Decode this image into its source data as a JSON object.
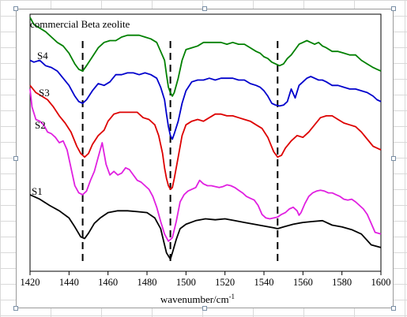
{
  "chart_data": {
    "type": "line",
    "title": "",
    "xlabel": "wavenumber/cm",
    "xlabel_superscript": "-1",
    "ylabel": "",
    "xlim": [
      1420,
      1600
    ],
    "ylim": [
      0,
      14
    ],
    "x_ticks": [
      "1420",
      "1440",
      "1460",
      "1480",
      "1500",
      "1520",
      "1540",
      "1560",
      "1580",
      "1600"
    ],
    "y_ticks_shown": false,
    "grid": false,
    "legend": "none (labels placed beside each curve)",
    "reference_lines": [
      1447,
      1492,
      1547
    ],
    "reference_line_style": "dashed",
    "series": [
      {
        "name": "S1",
        "color": "#000000",
        "x": [
          1420,
          1425,
          1430,
          1435,
          1440,
          1443,
          1446,
          1448,
          1450,
          1453,
          1456,
          1460,
          1465,
          1470,
          1475,
          1480,
          1484,
          1487,
          1489,
          1490,
          1492,
          1493,
          1495,
          1497,
          1500,
          1505,
          1510,
          1515,
          1520,
          1525,
          1530,
          1535,
          1540,
          1545,
          1547,
          1550,
          1555,
          1560,
          1565,
          1570,
          1575,
          1580,
          1585,
          1590,
          1595,
          1600
        ],
        "y": [
          4.1,
          3.85,
          3.5,
          3.2,
          2.8,
          2.3,
          1.75,
          1.65,
          1.95,
          2.5,
          2.8,
          3.1,
          3.2,
          3.2,
          3.15,
          3.1,
          2.8,
          2.2,
          1.3,
          0.85,
          0.5,
          0.85,
          1.6,
          2.2,
          2.45,
          2.65,
          2.75,
          2.7,
          2.75,
          2.65,
          2.55,
          2.45,
          2.35,
          2.25,
          2.2,
          2.3,
          2.45,
          2.55,
          2.6,
          2.65,
          2.4,
          2.3,
          2.15,
          1.9,
          1.3,
          1.15
        ]
      },
      {
        "name": "S2",
        "color": "#e020e0",
        "x": [
          1420,
          1421,
          1423,
          1425,
          1427,
          1429,
          1431,
          1433,
          1435,
          1437,
          1439,
          1441,
          1443,
          1445,
          1447,
          1449,
          1451,
          1453,
          1455,
          1457,
          1459,
          1461,
          1463,
          1465,
          1467,
          1469,
          1471,
          1473,
          1475,
          1477,
          1479,
          1481,
          1483,
          1485,
          1487,
          1489,
          1491,
          1493,
          1495,
          1497,
          1499,
          1501,
          1503,
          1505,
          1507,
          1509,
          1511,
          1513,
          1515,
          1517,
          1519,
          1521,
          1523,
          1525,
          1527,
          1529,
          1531,
          1533,
          1535,
          1537,
          1539,
          1541,
          1543,
          1545,
          1547,
          1549,
          1551,
          1553,
          1555,
          1557,
          1558,
          1559,
          1561,
          1563,
          1565,
          1567,
          1569,
          1571,
          1573,
          1575,
          1577,
          1579,
          1581,
          1583,
          1585,
          1587,
          1589,
          1591,
          1593,
          1595,
          1597,
          1600
        ],
        "y": [
          10.0,
          9.0,
          8.3,
          8.2,
          8.0,
          7.6,
          7.5,
          7.3,
          7.0,
          7.1,
          6.6,
          5.6,
          4.6,
          4.2,
          4.1,
          4.3,
          4.9,
          5.4,
          6.2,
          7.0,
          5.8,
          5.2,
          5.4,
          5.2,
          5.3,
          5.6,
          5.5,
          5.2,
          4.9,
          4.8,
          4.6,
          4.4,
          4.0,
          3.4,
          2.6,
          1.9,
          1.5,
          1.7,
          2.6,
          3.7,
          4.1,
          4.3,
          4.4,
          4.5,
          4.9,
          4.7,
          4.6,
          4.6,
          4.55,
          4.5,
          4.55,
          4.65,
          4.6,
          4.5,
          4.35,
          4.2,
          4.0,
          3.9,
          3.8,
          3.5,
          3.0,
          2.8,
          2.75,
          2.8,
          2.85,
          3.0,
          3.1,
          3.3,
          3.4,
          3.2,
          2.95,
          3.1,
          3.6,
          4.0,
          4.2,
          4.3,
          4.35,
          4.3,
          4.2,
          4.2,
          4.1,
          4.0,
          3.85,
          3.8,
          3.85,
          3.7,
          3.5,
          3.3,
          3.0,
          2.5,
          2.0,
          1.9
        ]
      },
      {
        "name": "S3",
        "color": "#dd0000",
        "x": [
          1420,
          1423,
          1426,
          1429,
          1432,
          1435,
          1438,
          1441,
          1444,
          1446,
          1448,
          1450,
          1452,
          1455,
          1458,
          1460,
          1463,
          1466,
          1469,
          1472,
          1475,
          1478,
          1481,
          1484,
          1486,
          1488,
          1489,
          1490,
          1491,
          1492,
          1493,
          1494,
          1496,
          1498,
          1500,
          1503,
          1506,
          1509,
          1512,
          1515,
          1518,
          1521,
          1524,
          1527,
          1530,
          1533,
          1536,
          1539,
          1542,
          1545,
          1547,
          1549,
          1551,
          1554,
          1557,
          1560,
          1563,
          1566,
          1569,
          1572,
          1575,
          1578,
          1581,
          1584,
          1587,
          1590,
          1593,
          1596,
          1598,
          1600
        ],
        "y": [
          10.2,
          9.8,
          9.6,
          9.4,
          9.0,
          8.5,
          8.1,
          7.6,
          6.8,
          6.4,
          6.2,
          6.4,
          6.9,
          7.4,
          7.7,
          8.2,
          8.6,
          8.7,
          8.7,
          8.7,
          8.7,
          8.4,
          8.3,
          8.0,
          7.4,
          6.4,
          5.6,
          5.0,
          4.6,
          4.4,
          4.5,
          5.0,
          6.2,
          7.4,
          8.0,
          8.2,
          8.3,
          8.2,
          8.4,
          8.6,
          8.6,
          8.5,
          8.5,
          8.4,
          8.3,
          8.2,
          8.0,
          7.8,
          7.3,
          6.5,
          6.2,
          6.3,
          6.7,
          7.1,
          7.4,
          7.3,
          7.6,
          8.0,
          8.4,
          8.5,
          8.5,
          8.3,
          8.1,
          8.0,
          7.9,
          7.6,
          7.2,
          6.8,
          6.7,
          6.6
        ]
      },
      {
        "name": "S4",
        "color": "#0000cc",
        "x": [
          1420,
          1422,
          1425,
          1428,
          1431,
          1434,
          1437,
          1440,
          1443,
          1445,
          1447,
          1449,
          1452,
          1455,
          1458,
          1461,
          1464,
          1467,
          1470,
          1473,
          1476,
          1479,
          1482,
          1485,
          1487,
          1489,
          1490,
          1491,
          1492,
          1493,
          1494,
          1496,
          1498,
          1500,
          1503,
          1506,
          1509,
          1512,
          1515,
          1518,
          1521,
          1524,
          1527,
          1530,
          1533,
          1536,
          1538,
          1540,
          1542,
          1544,
          1546,
          1548,
          1550,
          1552,
          1554,
          1556,
          1558,
          1560,
          1562,
          1564,
          1566,
          1568,
          1570,
          1572,
          1575,
          1578,
          1581,
          1584,
          1587,
          1590,
          1593,
          1596,
          1598,
          1600
        ],
        "y": [
          11.6,
          11.5,
          11.6,
          11.3,
          11.2,
          11.0,
          10.6,
          10.2,
          9.6,
          9.3,
          9.2,
          9.4,
          9.9,
          10.3,
          10.2,
          10.4,
          10.8,
          10.8,
          10.9,
          10.9,
          10.8,
          10.9,
          10.8,
          10.6,
          10.1,
          9.4,
          8.6,
          7.9,
          7.4,
          7.2,
          7.5,
          8.2,
          9.2,
          9.9,
          10.4,
          10.5,
          10.5,
          10.6,
          10.5,
          10.6,
          10.6,
          10.6,
          10.5,
          10.5,
          10.3,
          10.2,
          10.1,
          9.9,
          9.6,
          9.2,
          9.1,
          9.05,
          9.1,
          9.3,
          10.0,
          9.5,
          10.2,
          10.4,
          10.6,
          10.7,
          10.6,
          10.5,
          10.5,
          10.4,
          10.2,
          10.2,
          10.1,
          10.0,
          10.0,
          9.9,
          9.8,
          9.6,
          9.4,
          9.3
        ]
      },
      {
        "name": "commercial Beta zeolite",
        "color": "#008000",
        "x": [
          1420,
          1422,
          1425,
          1428,
          1431,
          1434,
          1437,
          1440,
          1443,
          1445,
          1447,
          1449,
          1452,
          1455,
          1458,
          1461,
          1464,
          1467,
          1470,
          1473,
          1476,
          1479,
          1482,
          1485,
          1487,
          1489,
          1490,
          1491,
          1492,
          1493,
          1494,
          1496,
          1498,
          1500,
          1503,
          1506,
          1509,
          1512,
          1515,
          1518,
          1521,
          1524,
          1527,
          1530,
          1533,
          1536,
          1538,
          1540,
          1542,
          1544,
          1546,
          1548,
          1550,
          1552,
          1554,
          1556,
          1558,
          1560,
          1562,
          1564,
          1566,
          1568,
          1570,
          1572,
          1575,
          1578,
          1581,
          1584,
          1587,
          1590,
          1593,
          1596,
          1598,
          1600
        ],
        "y": [
          14.0,
          13.6,
          13.4,
          13.2,
          12.9,
          12.6,
          12.4,
          12.0,
          11.4,
          11.1,
          11.0,
          11.3,
          11.8,
          12.3,
          12.6,
          12.7,
          12.7,
          12.9,
          13.0,
          13.0,
          13.0,
          12.9,
          12.8,
          12.6,
          12.1,
          11.6,
          10.8,
          10.1,
          9.8,
          9.6,
          9.8,
          10.6,
          11.6,
          12.2,
          12.3,
          12.4,
          12.6,
          12.6,
          12.6,
          12.6,
          12.5,
          12.6,
          12.5,
          12.5,
          12.3,
          12.1,
          12.0,
          11.8,
          11.7,
          11.5,
          11.4,
          11.3,
          11.4,
          11.7,
          11.9,
          12.2,
          12.5,
          12.6,
          12.7,
          12.6,
          12.5,
          12.6,
          12.4,
          12.3,
          12.1,
          12.1,
          12.0,
          11.9,
          11.9,
          11.6,
          11.4,
          11.2,
          11.1,
          11.0
        ]
      }
    ]
  }
}
